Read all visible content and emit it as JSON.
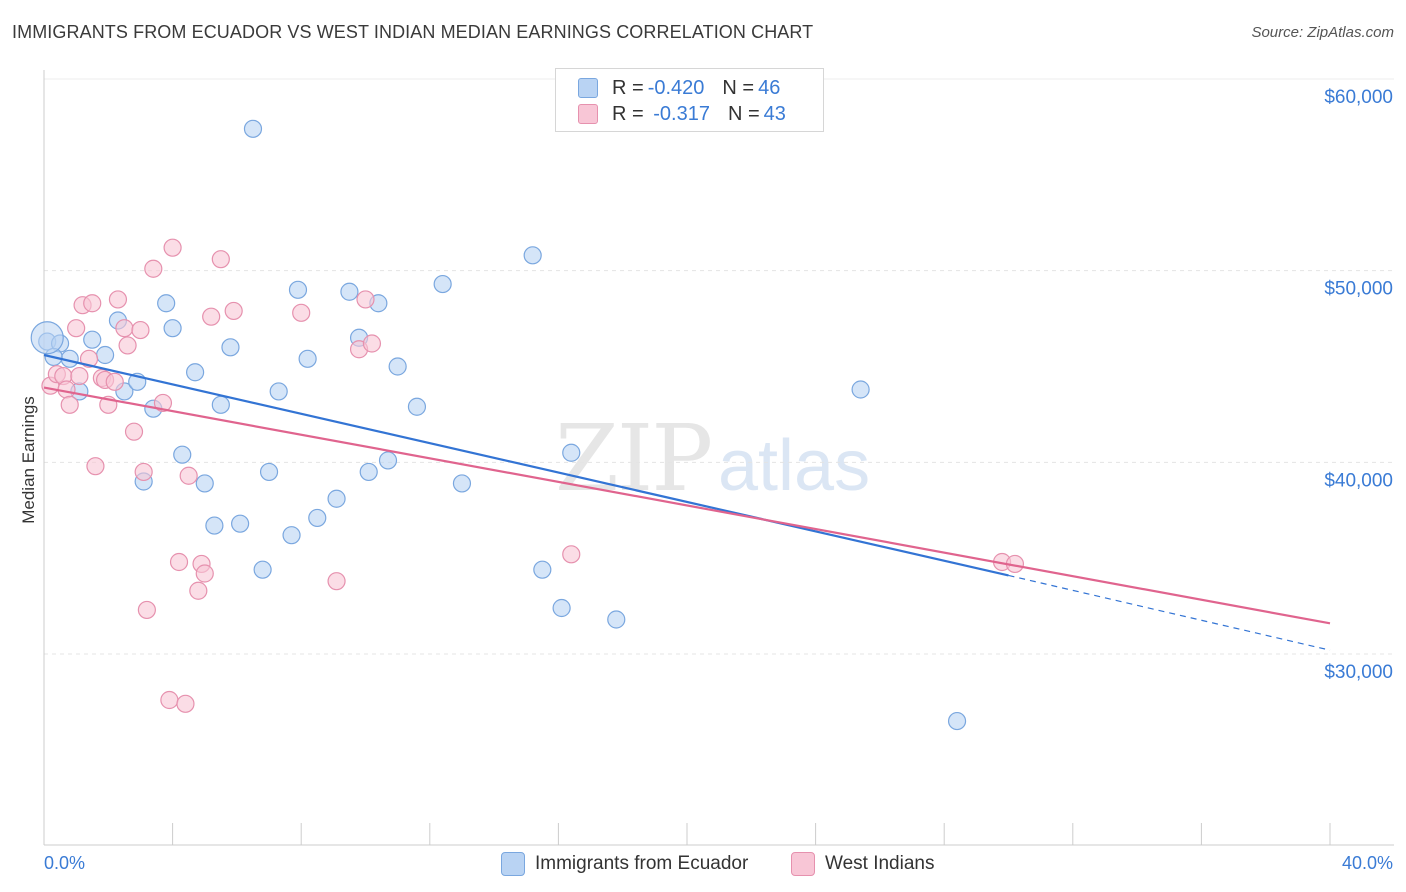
{
  "title": "IMMIGRANTS FROM ECUADOR VS WEST INDIAN MEDIAN EARNINGS CORRELATION CHART",
  "source": "Source: ZipAtlas.com",
  "watermark": {
    "part1": "ZIP",
    "part2": "atlas"
  },
  "legend_top": {
    "rows": [
      {
        "r_label": "R = ",
        "r_value": "-0.420",
        "n_label": "N = ",
        "n_value": "46"
      },
      {
        "r_label": "R = ",
        "r_value": " -0.317",
        "n_label": "N = ",
        "n_value": "43"
      }
    ]
  },
  "legend_bottom": {
    "series1": "Immigrants from Ecuador",
    "series2": "West Indians"
  },
  "chart_data": {
    "type": "scatter",
    "title": "IMMIGRANTS FROM ECUADOR VS WEST INDIAN MEDIAN EARNINGS CORRELATION CHART",
    "xlabel": "",
    "ylabel": "Median Earnings",
    "xlim": [
      0,
      40
    ],
    "ylim": [
      21000,
      61000
    ],
    "x_tick_labels": [
      "0.0%",
      "40.0%"
    ],
    "y_ticks": [
      30000,
      40000,
      50000,
      60000
    ],
    "y_tick_labels": [
      "$30,000",
      "$40,000",
      "$50,000",
      "$60,000"
    ],
    "grid": true,
    "legend_position": "bottom",
    "colors": {
      "ecuador_fill": "#b9d3f3",
      "ecuador_stroke": "#7aa7df",
      "ecuador_line": "#3374d4",
      "westindian_fill": "#f8c6d6",
      "westindian_stroke": "#e691ae",
      "westindian_line": "#e0648e",
      "tick_label": "#3a7bd5"
    },
    "series": [
      {
        "name": "Immigrants from Ecuador",
        "trend": {
          "x": [
            0.0,
            30.0
          ],
          "y": [
            45600,
            34100
          ],
          "dashed_to": [
            40.0,
            30200
          ]
        },
        "points": [
          [
            0.1,
            46300
          ],
          [
            0.5,
            46200
          ],
          [
            0.8,
            45400
          ],
          [
            1.1,
            43700
          ],
          [
            1.5,
            46400
          ],
          [
            1.9,
            45600
          ],
          [
            2.3,
            47400
          ],
          [
            2.5,
            43700
          ],
          [
            2.9,
            44200
          ],
          [
            3.1,
            39000
          ],
          [
            3.4,
            42800
          ],
          [
            3.8,
            48300
          ],
          [
            4.0,
            47000
          ],
          [
            4.3,
            40400
          ],
          [
            4.7,
            44700
          ],
          [
            5.0,
            38900
          ],
          [
            5.3,
            36700
          ],
          [
            5.5,
            43000
          ],
          [
            5.8,
            46000
          ],
          [
            6.1,
            36800
          ],
          [
            6.5,
            57400
          ],
          [
            6.8,
            34400
          ],
          [
            7.0,
            39500
          ],
          [
            7.3,
            43700
          ],
          [
            7.7,
            36200
          ],
          [
            7.9,
            49000
          ],
          [
            8.2,
            45400
          ],
          [
            8.5,
            37100
          ],
          [
            9.1,
            38100
          ],
          [
            9.5,
            48900
          ],
          [
            9.8,
            46500
          ],
          [
            10.1,
            39500
          ],
          [
            10.4,
            48300
          ],
          [
            10.7,
            40100
          ],
          [
            11.0,
            45000
          ],
          [
            11.6,
            42900
          ],
          [
            12.4,
            49300
          ],
          [
            13.0,
            38900
          ],
          [
            15.2,
            50800
          ],
          [
            15.5,
            34400
          ],
          [
            16.1,
            32400
          ],
          [
            16.4,
            40500
          ],
          [
            17.8,
            31800
          ],
          [
            25.4,
            43800
          ],
          [
            28.4,
            26500
          ],
          [
            0.3,
            45500
          ]
        ]
      },
      {
        "name": "West Indians",
        "trend": {
          "x": [
            0.0,
            40.0
          ],
          "y": [
            43900,
            31600
          ]
        },
        "points": [
          [
            0.2,
            44000
          ],
          [
            0.4,
            44600
          ],
          [
            0.6,
            44500
          ],
          [
            0.7,
            43800
          ],
          [
            0.8,
            43000
          ],
          [
            1.0,
            47000
          ],
          [
            1.1,
            44500
          ],
          [
            1.2,
            48200
          ],
          [
            1.4,
            45400
          ],
          [
            1.5,
            48300
          ],
          [
            1.6,
            39800
          ],
          [
            1.8,
            44400
          ],
          [
            1.9,
            44300
          ],
          [
            2.0,
            43000
          ],
          [
            2.2,
            44200
          ],
          [
            2.3,
            48500
          ],
          [
            2.5,
            47000
          ],
          [
            2.6,
            46100
          ],
          [
            2.8,
            41600
          ],
          [
            3.0,
            46900
          ],
          [
            3.1,
            39500
          ],
          [
            3.2,
            32300
          ],
          [
            3.4,
            50100
          ],
          [
            3.7,
            43100
          ],
          [
            3.9,
            27600
          ],
          [
            4.0,
            51200
          ],
          [
            4.2,
            34800
          ],
          [
            4.4,
            27400
          ],
          [
            4.5,
            39300
          ],
          [
            4.8,
            33300
          ],
          [
            4.9,
            34700
          ],
          [
            5.0,
            34200
          ],
          [
            5.2,
            47600
          ],
          [
            5.5,
            50600
          ],
          [
            5.9,
            47900
          ],
          [
            8.0,
            47800
          ],
          [
            9.1,
            33800
          ],
          [
            9.8,
            45900
          ],
          [
            10.0,
            48500
          ],
          [
            10.2,
            46200
          ],
          [
            16.4,
            35200
          ],
          [
            29.8,
            34800
          ],
          [
            30.2,
            34700
          ]
        ]
      }
    ]
  }
}
